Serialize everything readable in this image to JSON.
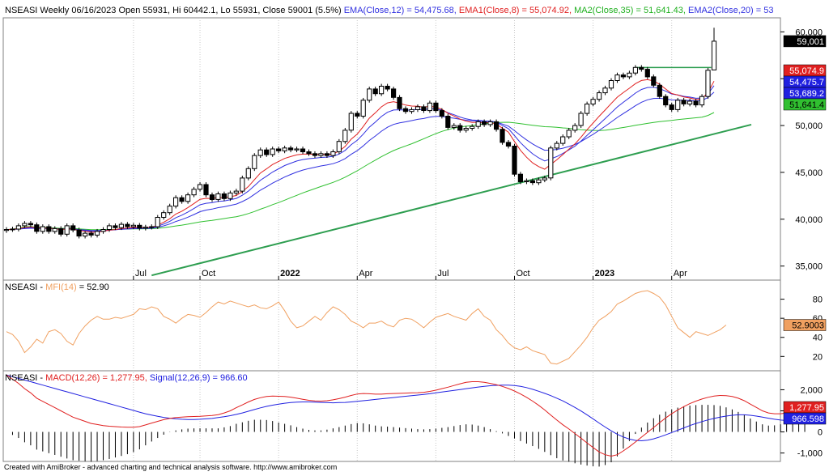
{
  "header_price": {
    "symbol": "NSEASI",
    "info": "Weekly 06/16/2023 Open 55931, Hi 60442.1, Lo 55931, Close 59001 (5.5%)",
    "ema12": "EMA(Close,12) = 54,475.68,",
    "ema8": "EMA1(Close,8) = 55,074.92,",
    "ma35": "MA2(Close,35) = 51,641.43,",
    "ema20": "EMA2(Close,20) = 53"
  },
  "header_mfi": {
    "symbol": "NSEASI",
    "label": "MFI(14)",
    "value": "= 52.90"
  },
  "header_macd": {
    "symbol": "NSEASI",
    "macd": "MACD(12,26) = 1,277.95,",
    "signal": "Signal(12,26,9) = 966.60"
  },
  "footer": "Created with AmiBroker - advanced charting and technical analysis software. http://www.amibroker.com",
  "badges": {
    "close": "59,001",
    "ema8": "55,074.9",
    "ema12": "54,475.7",
    "ema20": "53,689.2",
    "ma35": "51,641.4",
    "mfi": "52.9003",
    "macd": "1,277.95",
    "signal": "966.598"
  },
  "colors": {
    "ema12": "#3030e0",
    "ema8": "#e02020",
    "ma35": "#30c030",
    "ema20": "#3030e0",
    "trendline": "#2e9e50",
    "mfi": "#f0a060",
    "macd": "#e02020",
    "signal": "#2020e0",
    "histogram": "#000000"
  },
  "chart_data": {
    "type": "candlestick",
    "symbol": "NSEASI",
    "period": "Weekly",
    "x_labels": [
      "Jul",
      "Oct",
      "2022",
      "Apr",
      "Jul",
      "Oct",
      "2023",
      "Apr"
    ],
    "price_axis": {
      "ticks": [
        35000,
        40000,
        45000,
        50000,
        55000,
        60000
      ],
      "tick_labels": [
        "35,000",
        "40,000",
        "45,000",
        "50,000",
        "55,000",
        "60,000"
      ],
      "range": [
        33500,
        61500
      ]
    },
    "candles": [
      {
        "o": 38800,
        "c": 38900
      },
      {
        "o": 38900,
        "c": 38950
      },
      {
        "o": 38950,
        "c": 39300
      },
      {
        "o": 39300,
        "c": 39550
      },
      {
        "o": 39550,
        "c": 39400
      },
      {
        "o": 39400,
        "c": 38700
      },
      {
        "o": 38700,
        "c": 39200
      },
      {
        "o": 39200,
        "c": 38700
      },
      {
        "o": 38700,
        "c": 39000
      },
      {
        "o": 39000,
        "c": 38400
      },
      {
        "o": 38400,
        "c": 39300
      },
      {
        "o": 39300,
        "c": 38850
      },
      {
        "o": 38850,
        "c": 38200
      },
      {
        "o": 38200,
        "c": 38500
      },
      {
        "o": 38500,
        "c": 38300
      },
      {
        "o": 38300,
        "c": 38700
      },
      {
        "o": 38700,
        "c": 38900
      },
      {
        "o": 38900,
        "c": 39300
      },
      {
        "o": 39300,
        "c": 39100
      },
      {
        "o": 39100,
        "c": 39450
      },
      {
        "o": 39450,
        "c": 39200
      },
      {
        "o": 39200,
        "c": 39350
      },
      {
        "o": 39350,
        "c": 39050
      },
      {
        "o": 39050,
        "c": 39150
      },
      {
        "o": 39150,
        "c": 39200
      },
      {
        "o": 39200,
        "c": 40200
      },
      {
        "o": 40200,
        "c": 40700
      },
      {
        "o": 40700,
        "c": 41400
      },
      {
        "o": 41400,
        "c": 42300
      },
      {
        "o": 42300,
        "c": 41900
      },
      {
        "o": 41900,
        "c": 42600
      },
      {
        "o": 42600,
        "c": 43200
      },
      {
        "o": 43200,
        "c": 43700
      },
      {
        "o": 43700,
        "c": 42600
      },
      {
        "o": 42600,
        "c": 42100
      },
      {
        "o": 42100,
        "c": 42700
      },
      {
        "o": 42700,
        "c": 42200
      },
      {
        "o": 42200,
        "c": 42800
      },
      {
        "o": 42800,
        "c": 43000
      },
      {
        "o": 43000,
        "c": 44400
      },
      {
        "o": 44400,
        "c": 45400
      },
      {
        "o": 45400,
        "c": 46800
      },
      {
        "o": 46800,
        "c": 47400
      },
      {
        "o": 47400,
        "c": 46900
      },
      {
        "o": 46900,
        "c": 47500
      },
      {
        "o": 47500,
        "c": 47300
      },
      {
        "o": 47300,
        "c": 47600
      },
      {
        "o": 47600,
        "c": 47400
      },
      {
        "o": 47400,
        "c": 47500
      },
      {
        "o": 47500,
        "c": 47200
      },
      {
        "o": 47200,
        "c": 47000
      },
      {
        "o": 47000,
        "c": 46800
      },
      {
        "o": 46800,
        "c": 47000
      },
      {
        "o": 47000,
        "c": 46800
      },
      {
        "o": 46800,
        "c": 47200
      },
      {
        "o": 47200,
        "c": 48300
      },
      {
        "o": 48300,
        "c": 49500
      },
      {
        "o": 49500,
        "c": 51300
      },
      {
        "o": 51300,
        "c": 51000
      },
      {
        "o": 51000,
        "c": 52700
      },
      {
        "o": 52700,
        "c": 53900
      },
      {
        "o": 53900,
        "c": 53400
      },
      {
        "o": 53400,
        "c": 54200
      },
      {
        "o": 54200,
        "c": 53900
      },
      {
        "o": 53900,
        "c": 53000
      },
      {
        "o": 53000,
        "c": 51800
      },
      {
        "o": 51800,
        "c": 51500
      },
      {
        "o": 51500,
        "c": 51700
      },
      {
        "o": 51700,
        "c": 52000
      },
      {
        "o": 52000,
        "c": 51600
      },
      {
        "o": 51600,
        "c": 52400
      },
      {
        "o": 52400,
        "c": 51600
      },
      {
        "o": 51600,
        "c": 51000
      },
      {
        "o": 51000,
        "c": 49800
      },
      {
        "o": 49800,
        "c": 50000
      },
      {
        "o": 50000,
        "c": 49500
      },
      {
        "o": 49500,
        "c": 49700
      },
      {
        "o": 49700,
        "c": 49900
      },
      {
        "o": 49900,
        "c": 50400
      },
      {
        "o": 50400,
        "c": 50100
      },
      {
        "o": 50100,
        "c": 50400
      },
      {
        "o": 50400,
        "c": 49600
      },
      {
        "o": 49600,
        "c": 48200
      },
      {
        "o": 48200,
        "c": 47800
      },
      {
        "o": 47800,
        "c": 44800
      },
      {
        "o": 44800,
        "c": 44000
      },
      {
        "o": 44000,
        "c": 44100
      },
      {
        "o": 44100,
        "c": 43900
      },
      {
        "o": 43900,
        "c": 44200
      },
      {
        "o": 44200,
        "c": 44400
      },
      {
        "o": 44400,
        "c": 47600
      },
      {
        "o": 47600,
        "c": 48100
      },
      {
        "o": 48100,
        "c": 48800
      },
      {
        "o": 48800,
        "c": 49500
      },
      {
        "o": 49500,
        "c": 50000
      },
      {
        "o": 50000,
        "c": 51300
      },
      {
        "o": 51300,
        "c": 52300
      },
      {
        "o": 52300,
        "c": 52800
      },
      {
        "o": 52800,
        "c": 53500
      },
      {
        "o": 53500,
        "c": 54000
      },
      {
        "o": 54000,
        "c": 54800
      },
      {
        "o": 54800,
        "c": 55400
      },
      {
        "o": 55400,
        "c": 55200
      },
      {
        "o": 55200,
        "c": 55600
      },
      {
        "o": 55600,
        "c": 56200
      },
      {
        "o": 56200,
        "c": 56000
      },
      {
        "o": 56000,
        "c": 55200
      },
      {
        "o": 55200,
        "c": 54300
      },
      {
        "o": 54300,
        "c": 53100
      },
      {
        "o": 53100,
        "c": 52200
      },
      {
        "o": 52200,
        "c": 51700
      },
      {
        "o": 51700,
        "c": 52700
      },
      {
        "o": 52700,
        "c": 52300
      },
      {
        "o": 52300,
        "c": 52600
      },
      {
        "o": 52600,
        "c": 52200
      },
      {
        "o": 52200,
        "c": 53100
      },
      {
        "o": 53100,
        "c": 55900
      },
      {
        "o": 55931,
        "c": 59001,
        "h": 60442.1,
        "l": 55931
      }
    ],
    "trendline_segment": {
      "from": 34000,
      "to": 50100
    },
    "resistance_level": 56200,
    "mfi_axis": {
      "ticks": [
        20,
        40,
        60,
        80
      ],
      "range": [
        5,
        100
      ]
    },
    "mfi_values": [
      46,
      43,
      36,
      24,
      30,
      38,
      34,
      46,
      48,
      44,
      36,
      32,
      44,
      52,
      58,
      62,
      59,
      59,
      61,
      60,
      62,
      64,
      70,
      69,
      72,
      70,
      62,
      59,
      55,
      60,
      64,
      63,
      61,
      66,
      72,
      77,
      75,
      78,
      76,
      74,
      72,
      74,
      71,
      70,
      73,
      77,
      68,
      57,
      50,
      52,
      57,
      62,
      58,
      66,
      72,
      69,
      64,
      57,
      54,
      50,
      55,
      55,
      57,
      53,
      51,
      58,
      60,
      59,
      55,
      50,
      56,
      61,
      63,
      65,
      62,
      60,
      58,
      65,
      70,
      62,
      58,
      48,
      42,
      34,
      29,
      27,
      30,
      26,
      24,
      22,
      13,
      12,
      15,
      18,
      25,
      32,
      40,
      50,
      58,
      62,
      67,
      75,
      78,
      82,
      86,
      88,
      89,
      86,
      82,
      74,
      62,
      50,
      45,
      40,
      46,
      44,
      42,
      45,
      48,
      52.9
    ],
    "macd_axis": {
      "ticks": [
        -1000,
        0,
        1000,
        2000
      ],
      "tick_labels": [
        "-1,000",
        "0",
        "1,000",
        "2,000"
      ],
      "range": [
        -1400,
        2900
      ]
    },
    "macd_values": [
      2700,
      2500,
      2300,
      2050,
      1850,
      1600,
      1450,
      1300,
      1150,
      1000,
      850,
      700,
      600,
      500,
      400,
      350,
      300,
      270,
      250,
      230,
      220,
      220,
      250,
      330,
      420,
      500,
      580,
      640,
      680,
      700,
      720,
      730,
      740,
      760,
      780,
      820,
      900,
      1000,
      1150,
      1280,
      1420,
      1540,
      1620,
      1680,
      1700,
      1690,
      1680,
      1650,
      1600,
      1550,
      1500,
      1470,
      1460,
      1480,
      1520,
      1580,
      1650,
      1730,
      1800,
      1820,
      1810,
      1790,
      1790,
      1810,
      1820,
      1830,
      1840,
      1850,
      1860,
      1880,
      1920,
      1980,
      2050,
      2120,
      2200,
      2280,
      2350,
      2380,
      2380,
      2350,
      2300,
      2240,
      2160,
      2060,
      1940,
      1800,
      1640,
      1460,
      1260,
      1040,
      800,
      560,
      340,
      140,
      -80,
      -300,
      -520,
      -740,
      -950,
      -1080,
      -1150,
      -1080,
      -900,
      -700,
      -480,
      -250,
      -20,
      210,
      440,
      660,
      860,
      1040,
      1200,
      1340,
      1460,
      1560,
      1640,
      1700,
      1730,
      1720,
      1680,
      1600,
      1480,
      1320,
      1160,
      1000,
      900,
      860,
      860,
      900,
      960,
      1060,
      1277.95
    ],
    "signal_values": [
      2700,
      2620,
      2540,
      2460,
      2380,
      2300,
      2220,
      2140,
      2060,
      1980,
      1900,
      1820,
      1740,
      1660,
      1580,
      1500,
      1420,
      1340,
      1260,
      1180,
      1100,
      1020,
      940,
      860,
      800,
      740,
      690,
      650,
      620,
      600,
      590,
      590,
      600,
      620,
      640,
      680,
      720,
      770,
      830,
      900,
      980,
      1060,
      1140,
      1210,
      1270,
      1320,
      1360,
      1390,
      1410,
      1420,
      1420,
      1410,
      1400,
      1390,
      1380,
      1390,
      1400,
      1420,
      1450,
      1480,
      1510,
      1540,
      1570,
      1600,
      1630,
      1660,
      1690,
      1720,
      1750,
      1780,
      1810,
      1850,
      1890,
      1930,
      1970,
      2010,
      2050,
      2090,
      2130,
      2160,
      2190,
      2210,
      2220,
      2220,
      2200,
      2160,
      2100,
      2020,
      1930,
      1830,
      1720,
      1600,
      1470,
      1320,
      1160,
      990,
      810,
      620,
      420,
      230,
      50,
      -110,
      -240,
      -340,
      -400,
      -420,
      -390,
      -330,
      -240,
      -140,
      -30,
      80,
      190,
      300,
      400,
      490,
      570,
      640,
      700,
      750,
      790,
      810,
      810,
      790,
      750,
      700,
      650,
      600,
      560,
      540,
      560,
      600,
      650,
      700,
      966.598
    ]
  }
}
